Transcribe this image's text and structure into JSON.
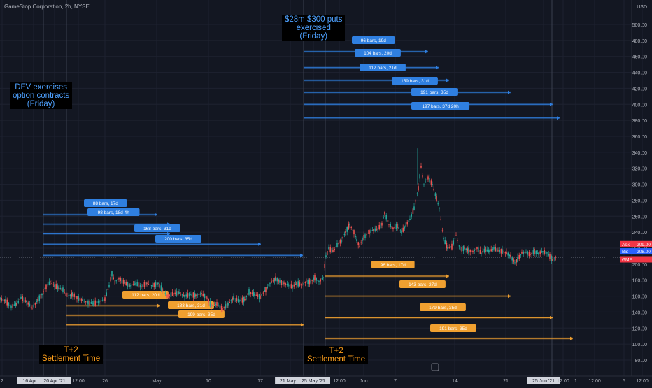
{
  "chart_data": {
    "type": "candlestick",
    "symbol_line": "GameStop Corporation, 2h, NYSE",
    "currency_label": "USD",
    "ylim": [
      60,
      520
    ],
    "y_ticks": [
      "80.00",
      "100.00",
      "120.00",
      "140.00",
      "160.00",
      "180.00",
      "200.00",
      "220.00",
      "240.00",
      "260.00",
      "280.00",
      "300.00",
      "320.00",
      "340.00",
      "360.00",
      "380.00",
      "400.00",
      "420.00",
      "440.00",
      "460.00",
      "480.00",
      "500.00"
    ],
    "x_ticks": [
      "2",
      "12",
      "16 Apr '21",
      "20 Apr '21",
      "12:00",
      "26",
      "May",
      "10",
      "17",
      "21 May '2",
      "25 May '21",
      "12:00",
      "Jun",
      "7",
      "14",
      "21",
      "25 Jun '21",
      "12:00",
      "1",
      "12:00",
      "5",
      "12:00"
    ],
    "annotations": [
      {
        "lines": [
          "DFV exercises",
          "option contracts",
          "(Friday)"
        ],
        "color": "#4ea1ff"
      },
      {
        "lines": [
          "$28m $300 puts",
          "exercised",
          "(Friday)"
        ],
        "color": "#4ea1ff"
      },
      {
        "lines": [
          "T+2",
          "Settlement Time"
        ],
        "color": "#ff9f1a"
      },
      {
        "lines": [
          "T+2",
          "Settlement Time"
        ],
        "color": "#ff9f1a"
      }
    ],
    "blue_ranges": [
      {
        "label": "88 bars, 17d",
        "y": 262
      },
      {
        "label": "98 bars, 18d 4h",
        "y": 250
      },
      {
        "label": "168 bars, 31d",
        "y": 238
      },
      {
        "label": "200 bars, 35d",
        "y": 225
      },
      {
        "label": "",
        "y": 211
      },
      {
        "label": "96 bars, 19d",
        "y": 466
      },
      {
        "label": "104 bars, 20d",
        "y": 446
      },
      {
        "label": "112 bars, 21d",
        "y": 430
      },
      {
        "label": "159 bars, 31d",
        "y": 415
      },
      {
        "label": "191 bars, 35d",
        "y": 400
      },
      {
        "label": "197 bars, 37d 20h",
        "y": 383
      }
    ],
    "orange_ranges": [
      {
        "label": "112 bars, 20d",
        "y": 148
      },
      {
        "label": "183 bars, 31d",
        "y": 136
      },
      {
        "label": "199 bars, 35d",
        "y": 124
      },
      {
        "label": "96 bars, 17d",
        "y": 185
      },
      {
        "label": "143 bars, 27d",
        "y": 160
      },
      {
        "label": "179 bars, 35d",
        "y": 133
      },
      {
        "label": "191 bars, 35d",
        "y": 107
      }
    ],
    "price_tags": [
      {
        "label": "Ask",
        "value": "209.00",
        "color": "#f23645"
      },
      {
        "label": "Bid",
        "value": "208.00",
        "color": "#2962ff"
      },
      {
        "label": "GME",
        "value": "",
        "color": "#f23645"
      }
    ],
    "price_path": [
      [
        0,
        157
      ],
      [
        8,
        154
      ],
      [
        16,
        147
      ],
      [
        24,
        150
      ],
      [
        30,
        158
      ],
      [
        38,
        153
      ],
      [
        46,
        145
      ],
      [
        54,
        155
      ],
      [
        60,
        162
      ],
      [
        66,
        172
      ],
      [
        72,
        178
      ],
      [
        78,
        173
      ],
      [
        84,
        170
      ],
      [
        90,
        168
      ],
      [
        96,
        160
      ],
      [
        104,
        162
      ],
      [
        110,
        158
      ],
      [
        118,
        155
      ],
      [
        126,
        152
      ],
      [
        134,
        151
      ],
      [
        142,
        153
      ],
      [
        150,
        156
      ],
      [
        156,
        173
      ],
      [
        160,
        188
      ],
      [
        164,
        178
      ],
      [
        170,
        182
      ],
      [
        178,
        177
      ],
      [
        186,
        173
      ],
      [
        194,
        176
      ],
      [
        202,
        172
      ],
      [
        210,
        176
      ],
      [
        218,
        173
      ],
      [
        226,
        176
      ],
      [
        232,
        168
      ],
      [
        240,
        160
      ],
      [
        248,
        163
      ],
      [
        256,
        164
      ],
      [
        264,
        160
      ],
      [
        272,
        162
      ],
      [
        280,
        161
      ],
      [
        288,
        163
      ],
      [
        296,
        158
      ],
      [
        302,
        148
      ],
      [
        310,
        150
      ],
      [
        318,
        144
      ],
      [
        326,
        150
      ],
      [
        334,
        158
      ],
      [
        342,
        154
      ],
      [
        350,
        156
      ],
      [
        356,
        165
      ],
      [
        364,
        162
      ],
      [
        372,
        159
      ],
      [
        380,
        168
      ],
      [
        386,
        176
      ],
      [
        394,
        182
      ],
      [
        400,
        178
      ],
      [
        406,
        176
      ],
      [
        412,
        174
      ],
      [
        418,
        172
      ],
      [
        424,
        176
      ],
      [
        432,
        174
      ],
      [
        438,
        178
      ],
      [
        444,
        178
      ],
      [
        450,
        183
      ],
      [
        456,
        178
      ],
      [
        462,
        183
      ],
      [
        466,
        210
      ],
      [
        470,
        220
      ],
      [
        476,
        216
      ],
      [
        482,
        224
      ],
      [
        488,
        229
      ],
      [
        494,
        240
      ],
      [
        500,
        250
      ],
      [
        506,
        240
      ],
      [
        510,
        230
      ],
      [
        514,
        222
      ],
      [
        518,
        231
      ],
      [
        522,
        235
      ],
      [
        528,
        240
      ],
      [
        534,
        243
      ],
      [
        540,
        244
      ],
      [
        546,
        250
      ],
      [
        550,
        264
      ],
      [
        556,
        250
      ],
      [
        562,
        245
      ],
      [
        568,
        248
      ],
      [
        574,
        240
      ],
      [
        580,
        248
      ],
      [
        586,
        256
      ],
      [
        592,
        270
      ],
      [
        598,
        295
      ],
      [
        602,
        322
      ],
      [
        606,
        300
      ],
      [
        612,
        308
      ],
      [
        618,
        300
      ],
      [
        624,
        282
      ],
      [
        628,
        270
      ],
      [
        634,
        232
      ],
      [
        640,
        220
      ],
      [
        646,
        222
      ],
      [
        652,
        236
      ],
      [
        658,
        218
      ],
      [
        664,
        220
      ],
      [
        670,
        217
      ],
      [
        676,
        216
      ],
      [
        682,
        220
      ],
      [
        688,
        214
      ],
      [
        694,
        218
      ],
      [
        700,
        216
      ],
      [
        706,
        220
      ],
      [
        712,
        217
      ],
      [
        718,
        216
      ],
      [
        724,
        214
      ],
      [
        730,
        210
      ],
      [
        736,
        202
      ],
      [
        740,
        206
      ],
      [
        746,
        214
      ],
      [
        752,
        215
      ],
      [
        758,
        212
      ],
      [
        764,
        216
      ],
      [
        770,
        213
      ],
      [
        776,
        216
      ],
      [
        782,
        214
      ],
      [
        786,
        210
      ],
      [
        790,
        205
      ],
      [
        796,
        210
      ]
    ]
  }
}
